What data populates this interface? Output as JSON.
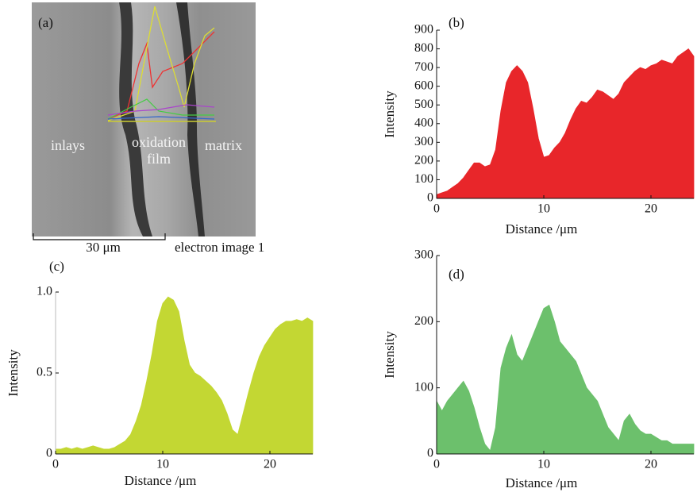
{
  "image": {
    "panel_label": "(a)",
    "labels": [
      "inlays",
      "oxidation",
      "film",
      "matrix"
    ],
    "scale_bar": "30 μm",
    "caption": "electron image 1"
  },
  "chart_data": [
    {
      "type": "area",
      "title": "(b)",
      "xlabel": "Distance /μm",
      "ylabel": "Intensity",
      "color": "#e8262a",
      "x": [
        0,
        0.5,
        1,
        1.5,
        2,
        2.5,
        3,
        3.5,
        4,
        4.5,
        5,
        5.5,
        6,
        6.5,
        7,
        7.5,
        8,
        8.5,
        9,
        9.5,
        10,
        10.5,
        11,
        11.5,
        12,
        12.5,
        13,
        13.5,
        14,
        14.5,
        15,
        15.5,
        16,
        16.5,
        17,
        17.5,
        18,
        18.5,
        19,
        19.5,
        20,
        20.5,
        21,
        21.5,
        22,
        22.5,
        23,
        23.5,
        24
      ],
      "values": [
        20,
        30,
        40,
        60,
        80,
        110,
        150,
        190,
        190,
        170,
        180,
        260,
        470,
        620,
        680,
        710,
        680,
        620,
        480,
        320,
        220,
        230,
        270,
        300,
        350,
        420,
        480,
        520,
        510,
        540,
        580,
        570,
        550,
        530,
        560,
        620,
        650,
        680,
        700,
        690,
        710,
        720,
        740,
        730,
        720,
        760,
        780,
        800,
        760
      ],
      "xlim": [
        0,
        24
      ],
      "xticks": [
        0,
        10,
        20
      ],
      "ylim": [
        0,
        900
      ],
      "yticks": [
        0,
        100,
        200,
        300,
        400,
        500,
        600,
        700,
        800,
        900
      ]
    },
    {
      "type": "area",
      "title": "(c)",
      "xlabel": "Distance /μm",
      "ylabel": "Intensity",
      "color": "#c3d733",
      "x": [
        0,
        0.5,
        1,
        1.5,
        2,
        2.5,
        3,
        3.5,
        4,
        4.5,
        5,
        5.5,
        6,
        6.5,
        7,
        7.5,
        8,
        8.5,
        9,
        9.5,
        10,
        10.5,
        11,
        11.5,
        12,
        12.5,
        13,
        13.5,
        14,
        14.5,
        15,
        15.5,
        16,
        16.5,
        17,
        17.5,
        18,
        18.5,
        19,
        19.5,
        20,
        20.5,
        21,
        21.5,
        22,
        22.5,
        23,
        23.5,
        24
      ],
      "values": [
        0.03,
        0.03,
        0.04,
        0.03,
        0.04,
        0.03,
        0.04,
        0.05,
        0.04,
        0.03,
        0.03,
        0.04,
        0.06,
        0.08,
        0.12,
        0.2,
        0.3,
        0.45,
        0.62,
        0.82,
        0.93,
        0.97,
        0.95,
        0.88,
        0.7,
        0.55,
        0.5,
        0.48,
        0.45,
        0.42,
        0.38,
        0.33,
        0.25,
        0.15,
        0.12,
        0.25,
        0.38,
        0.5,
        0.6,
        0.67,
        0.72,
        0.77,
        0.8,
        0.82,
        0.82,
        0.83,
        0.82,
        0.84,
        0.82
      ],
      "xlim": [
        0,
        24
      ],
      "xticks": [
        0,
        10,
        20
      ],
      "ylim": [
        0,
        1
      ],
      "yticks": [
        0,
        0.5,
        {
          "value": 1,
          "label": "1.0"
        }
      ]
    },
    {
      "type": "area",
      "title": "(d)",
      "xlabel": "Distance /μm",
      "ylabel": "Intensity",
      "color": "#6cc06c",
      "x": [
        0,
        0.5,
        1,
        1.5,
        2,
        2.5,
        3,
        3.5,
        4,
        4.5,
        5,
        5.5,
        6,
        6.5,
        7,
        7.5,
        8,
        8.5,
        9,
        9.5,
        10,
        10.5,
        11,
        11.5,
        12,
        12.5,
        13,
        13.5,
        14,
        14.5,
        15,
        15.5,
        16,
        16.5,
        17,
        17.5,
        18,
        18.5,
        19,
        19.5,
        20,
        20.5,
        21,
        21.5,
        22,
        22.5,
        23,
        23.5,
        24
      ],
      "values": [
        80,
        65,
        80,
        90,
        100,
        110,
        95,
        70,
        40,
        15,
        5,
        40,
        130,
        160,
        180,
        150,
        140,
        160,
        180,
        200,
        220,
        225,
        200,
        170,
        160,
        150,
        140,
        120,
        100,
        90,
        80,
        60,
        40,
        30,
        20,
        50,
        60,
        45,
        35,
        30,
        30,
        25,
        20,
        20,
        15,
        15,
        15,
        15,
        15
      ],
      "xlim": [
        0,
        24
      ],
      "xticks": [
        0,
        10,
        20
      ],
      "ylim": [
        0,
        300
      ],
      "yticks": [
        0,
        100,
        200,
        300
      ]
    }
  ]
}
